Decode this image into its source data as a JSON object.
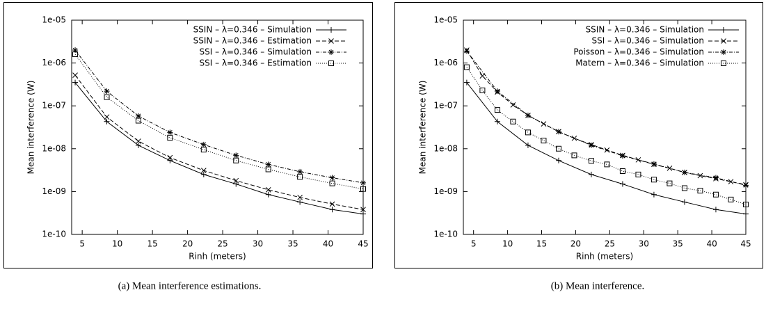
{
  "chart_data": [
    {
      "type": "line",
      "caption": "(a) Mean interference estimations.",
      "xlabel": "Rinh (meters)",
      "ylabel": "Mean interference (W)",
      "log_y": true,
      "legend": "upper right",
      "xlim": [
        3.5,
        45
      ],
      "xticks": [
        5,
        10,
        15,
        20,
        25,
        30,
        35,
        40,
        45
      ],
      "ylim": [
        1e-10,
        1e-05
      ],
      "yticks": [
        {
          "value": 1e-10,
          "label": "1e-10"
        },
        {
          "value": 1e-09,
          "label": "1e-09"
        },
        {
          "value": 1e-08,
          "label": "1e-08"
        },
        {
          "value": 1e-07,
          "label": "1e-07"
        },
        {
          "value": 1e-06,
          "label": "1e-06"
        },
        {
          "value": 1e-05,
          "label": "1e-05"
        }
      ],
      "x": [
        4,
        8.5,
        13,
        17.5,
        22.3,
        26.9,
        31.5,
        36,
        40.6,
        45
      ],
      "series": [
        {
          "name": "SSIN – λ=0.346 – Simulation",
          "color": "#000000",
          "dash": "solid",
          "marker": "plus",
          "values": [
            3.5e-07,
            4.3e-08,
            1.2e-08,
            5.3e-09,
            2.5e-09,
            1.5e-09,
            8.5e-10,
            5.7e-10,
            3.8e-10,
            3e-10
          ]
        },
        {
          "name": "SSIN – λ=0.346 – Estimation",
          "color": "#000000",
          "dash": "dashed",
          "marker": "cross",
          "values": [
            5.2e-07,
            5.5e-08,
            1.5e-08,
            6.2e-09,
            3.1e-09,
            1.8e-09,
            1.1e-09,
            7.3e-10,
            5.1e-10,
            3.8e-10
          ]
        },
        {
          "name": "SSI – λ=0.346 – Simulation",
          "color": "#000000",
          "dash": "dashdot",
          "marker": "star",
          "values": [
            2e-06,
            2.2e-07,
            5.8e-08,
            2.4e-08,
            1.25e-08,
            7e-09,
            4.3e-09,
            2.9e-09,
            2.1e-09,
            1.6e-09
          ]
        },
        {
          "name": "SSI – λ=0.346 – Estimation",
          "color": "#000000",
          "dash": "dotted",
          "marker": "square",
          "values": [
            1.6e-06,
            1.6e-07,
            4.5e-08,
            1.8e-08,
            9.5e-09,
            5.3e-09,
            3.3e-09,
            2.2e-09,
            1.55e-09,
            1.15e-09
          ]
        }
      ]
    },
    {
      "type": "line",
      "caption": "(b) Mean interference.",
      "xlabel": "Rinh (meters)",
      "ylabel": "Mean interference (W)",
      "log_y": true,
      "legend": "upper right",
      "xlim": [
        3.5,
        45
      ],
      "xticks": [
        5,
        10,
        15,
        20,
        25,
        30,
        35,
        40,
        45
      ],
      "ylim": [
        1e-10,
        1e-05
      ],
      "yticks": [
        {
          "value": 1e-10,
          "label": "1e-10"
        },
        {
          "value": 1e-09,
          "label": "1e-09"
        },
        {
          "value": 1e-08,
          "label": "1e-08"
        },
        {
          "value": 1e-07,
          "label": "1e-07"
        },
        {
          "value": 1e-06,
          "label": "1e-06"
        },
        {
          "value": 1e-05,
          "label": "1e-05"
        }
      ],
      "series": [
        {
          "name": "SSIN – λ=0.346 – Simulation",
          "color": "#000000",
          "dash": "solid",
          "marker": "plus",
          "x": [
            4,
            8.5,
            13,
            17.5,
            22.3,
            26.9,
            31.5,
            36,
            40.6,
            45
          ],
          "values": [
            3.5e-07,
            4.3e-08,
            1.2e-08,
            5.3e-09,
            2.5e-09,
            1.5e-09,
            8.5e-10,
            5.7e-10,
            3.8e-10,
            3e-10
          ]
        },
        {
          "name": "SSI – λ=0.346 – Simulation",
          "color": "#000000",
          "dash": "dashed",
          "marker": "cross",
          "x": [
            4,
            6.3,
            8.5,
            10.8,
            13,
            15.3,
            17.5,
            19.8,
            22.3,
            24.6,
            26.9,
            29.2,
            31.5,
            33.8,
            36,
            38.3,
            40.6,
            42.8,
            45
          ],
          "values": [
            2e-06,
            5e-07,
            2.1e-07,
            1.05e-07,
            6e-08,
            3.8e-08,
            2.5e-08,
            1.75e-08,
            1.25e-08,
            9.3e-09,
            7e-09,
            5.5e-09,
            4.3e-09,
            3.5e-09,
            2.8e-09,
            2.35e-09,
            2e-09,
            1.7e-09,
            1.45e-09
          ]
        },
        {
          "name": "Poisson – λ=0.346 – Simulation",
          "color": "#000000",
          "dash": "dashdot",
          "marker": "star",
          "x": [
            4,
            8.5,
            13,
            17.5,
            22.3,
            26.9,
            31.5,
            36,
            40.6,
            45
          ],
          "values": [
            1.9e-06,
            2.2e-07,
            6e-08,
            2.5e-08,
            1.2e-08,
            6.8e-09,
            4.4e-09,
            2.8e-09,
            2.1e-09,
            1.4e-09
          ]
        },
        {
          "name": "Matern – λ=0.346 – Simulation",
          "color": "#000000",
          "dash": "dotted",
          "marker": "square",
          "x": [
            4,
            6.3,
            8.5,
            10.8,
            13,
            15.3,
            17.5,
            19.8,
            22.3,
            24.6,
            26.9,
            29.2,
            31.5,
            33.8,
            36,
            38.3,
            40.6,
            42.8,
            45
          ],
          "values": [
            8e-07,
            2.3e-07,
            8e-08,
            4.3e-08,
            2.4e-08,
            1.55e-08,
            1e-08,
            7e-09,
            5.2e-09,
            4.3e-09,
            3e-09,
            2.5e-09,
            1.9e-09,
            1.55e-09,
            1.2e-09,
            1.05e-09,
            8.5e-10,
            6.5e-10,
            5e-10
          ]
        }
      ]
    }
  ]
}
